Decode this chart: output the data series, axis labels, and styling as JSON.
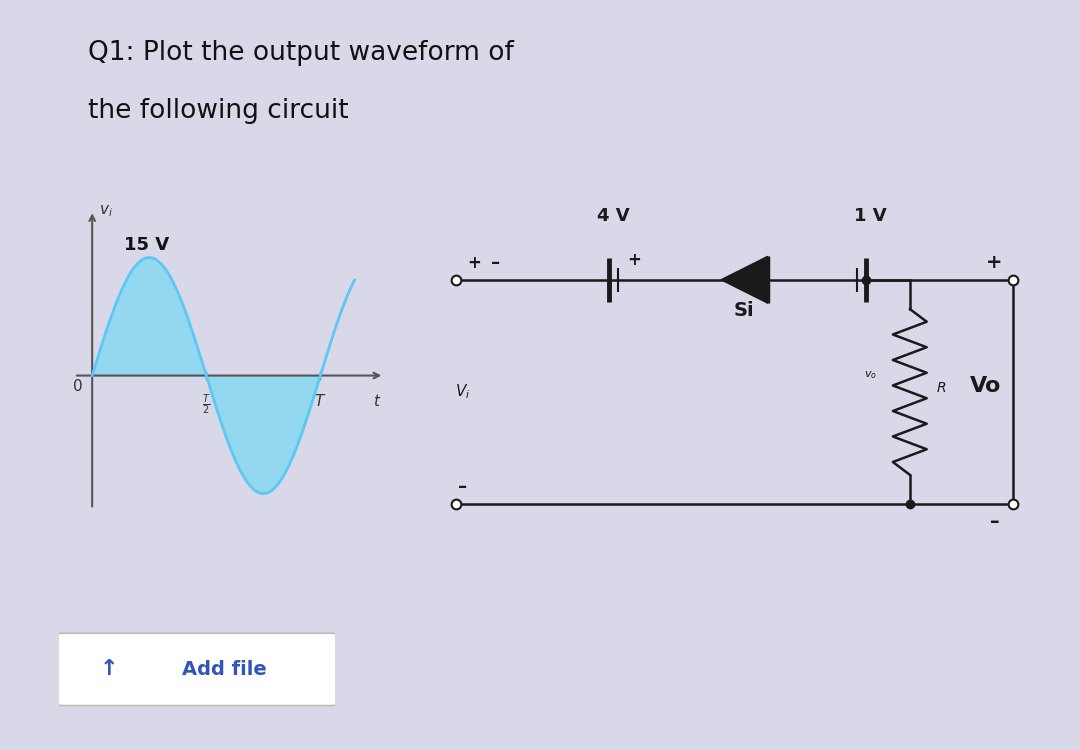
{
  "title_line1": "Q1: Plot the output waveform of",
  "title_line2": "the following circuit",
  "title_fontsize": 19,
  "bg_color": "#d8d8e8",
  "panel_bg": "#ffffff",
  "waveform_color": "#5bc8f5",
  "waveform_fill_color": "#8dd8f0",
  "waveform_amplitude": 15,
  "waveform_label": "15 V",
  "axis_color": "#555555",
  "circuit_color": "#1a1a1a",
  "add_file_text": "Add file",
  "voltage_4v": "4 V",
  "voltage_1v": "1 V",
  "si_label": "Si",
  "r_label": "R",
  "vo_label": "Vo"
}
